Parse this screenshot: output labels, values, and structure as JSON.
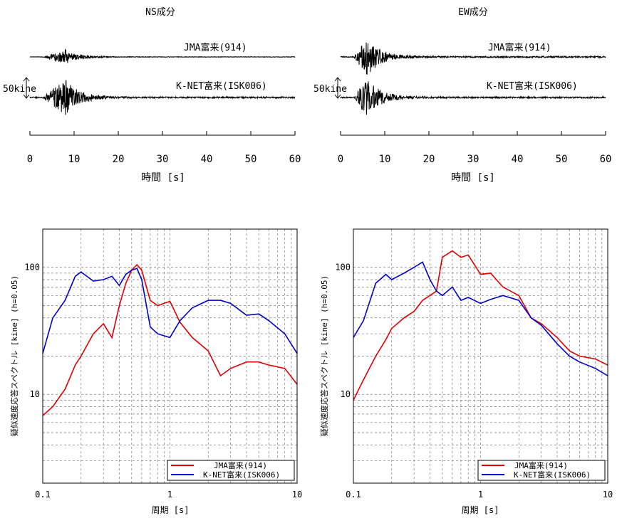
{
  "chart_data": [
    {
      "type": "line",
      "title": "NS成分",
      "xlabel": "時間 [s]",
      "x_ticks": [
        "0",
        "10",
        "20",
        "30",
        "40",
        "50",
        "60"
      ],
      "xlim": [
        0,
        60
      ],
      "scale_label": "50kine",
      "series": [
        {
          "name": "JMA富来(914)",
          "peak_time_s": 8,
          "amp": 0.55
        },
        {
          "name": "K-NET富来(ISK006)",
          "peak_time_s": 8,
          "amp": 1.0
        }
      ]
    },
    {
      "type": "line",
      "title": "EW成分",
      "xlabel": "時間 [s]",
      "x_ticks": [
        "0",
        "10",
        "20",
        "30",
        "40",
        "50",
        "60"
      ],
      "xlim": [
        0,
        60
      ],
      "scale_label": "50kine",
      "series": [
        {
          "name": "JMA富来(914)",
          "peak_time_s": 6,
          "amp": 1.0
        },
        {
          "name": "K-NET富来(ISK006)",
          "peak_time_s": 6,
          "amp": 1.0
        }
      ]
    },
    {
      "type": "line",
      "xlabel": "周期 [s]",
      "ylabel": "疑似速度応答スペクトル [kine] (h=0.05)",
      "x_scale": "log",
      "y_scale": "log",
      "xlim": [
        0.1,
        10
      ],
      "ylim": [
        2,
        200
      ],
      "x_tick_labels": [
        "0.1",
        "1",
        "10"
      ],
      "y_tick_labels": [
        "10",
        "100"
      ],
      "grid": true,
      "legend": "bottom-right",
      "series": [
        {
          "name": "JMA富来(914)",
          "color": "#dd0000",
          "x": [
            0.1,
            0.12,
            0.15,
            0.18,
            0.2,
            0.25,
            0.3,
            0.35,
            0.4,
            0.45,
            0.5,
            0.55,
            0.6,
            0.7,
            0.8,
            1.0,
            1.2,
            1.5,
            2,
            2.5,
            3,
            4,
            5,
            6,
            8,
            10
          ],
          "y": [
            6.8,
            8,
            11,
            17,
            20,
            30,
            36,
            28,
            50,
            75,
            95,
            105,
            95,
            55,
            50,
            54,
            37,
            28,
            22,
            14,
            16,
            18,
            18,
            17,
            16,
            12
          ]
        },
        {
          "name": "K-NET富来(ISK006)",
          "color": "#0000cc",
          "x": [
            0.1,
            0.12,
            0.15,
            0.18,
            0.2,
            0.25,
            0.3,
            0.35,
            0.4,
            0.45,
            0.5,
            0.55,
            0.6,
            0.7,
            0.8,
            1.0,
            1.2,
            1.5,
            2,
            2.5,
            3,
            4,
            5,
            6,
            8,
            10
          ],
          "y": [
            21,
            40,
            55,
            85,
            92,
            78,
            80,
            85,
            72,
            88,
            95,
            98,
            80,
            34,
            30,
            28,
            38,
            48,
            55,
            55,
            52,
            42,
            43,
            38,
            30,
            21
          ]
        }
      ]
    },
    {
      "type": "line",
      "xlabel": "周期 [s]",
      "ylabel": "疑似速度応答スペクトル [kine] (h=0.05)",
      "x_scale": "log",
      "y_scale": "log",
      "xlim": [
        0.1,
        10
      ],
      "ylim": [
        2,
        200
      ],
      "x_tick_labels": [
        "0.1",
        "1",
        "10"
      ],
      "y_tick_labels": [
        "10",
        "100"
      ],
      "grid": true,
      "legend": "bottom-right",
      "series": [
        {
          "name": "JMA富来(914)",
          "color": "#dd0000",
          "x": [
            0.1,
            0.12,
            0.15,
            0.18,
            0.2,
            0.25,
            0.3,
            0.35,
            0.4,
            0.45,
            0.5,
            0.6,
            0.7,
            0.8,
            1.0,
            1.2,
            1.5,
            2,
            2.5,
            3,
            4,
            5,
            6,
            8,
            10
          ],
          "y": [
            9,
            13,
            20,
            27,
            33,
            40,
            45,
            55,
            60,
            65,
            120,
            135,
            120,
            125,
            88,
            90,
            70,
            60,
            40,
            36,
            28,
            22,
            20,
            19,
            17
          ]
        },
        {
          "name": "K-NET富来(ISK006)",
          "color": "#0000cc",
          "x": [
            0.1,
            0.12,
            0.15,
            0.18,
            0.2,
            0.25,
            0.3,
            0.35,
            0.4,
            0.45,
            0.5,
            0.6,
            0.7,
            0.8,
            1.0,
            1.2,
            1.5,
            2,
            2.5,
            3,
            4,
            5,
            6,
            8,
            10
          ],
          "y": [
            28,
            38,
            75,
            88,
            80,
            90,
            100,
            110,
            80,
            65,
            60,
            70,
            55,
            58,
            52,
            56,
            60,
            55,
            40,
            35,
            25,
            20,
            18,
            16,
            14
          ]
        }
      ]
    }
  ]
}
